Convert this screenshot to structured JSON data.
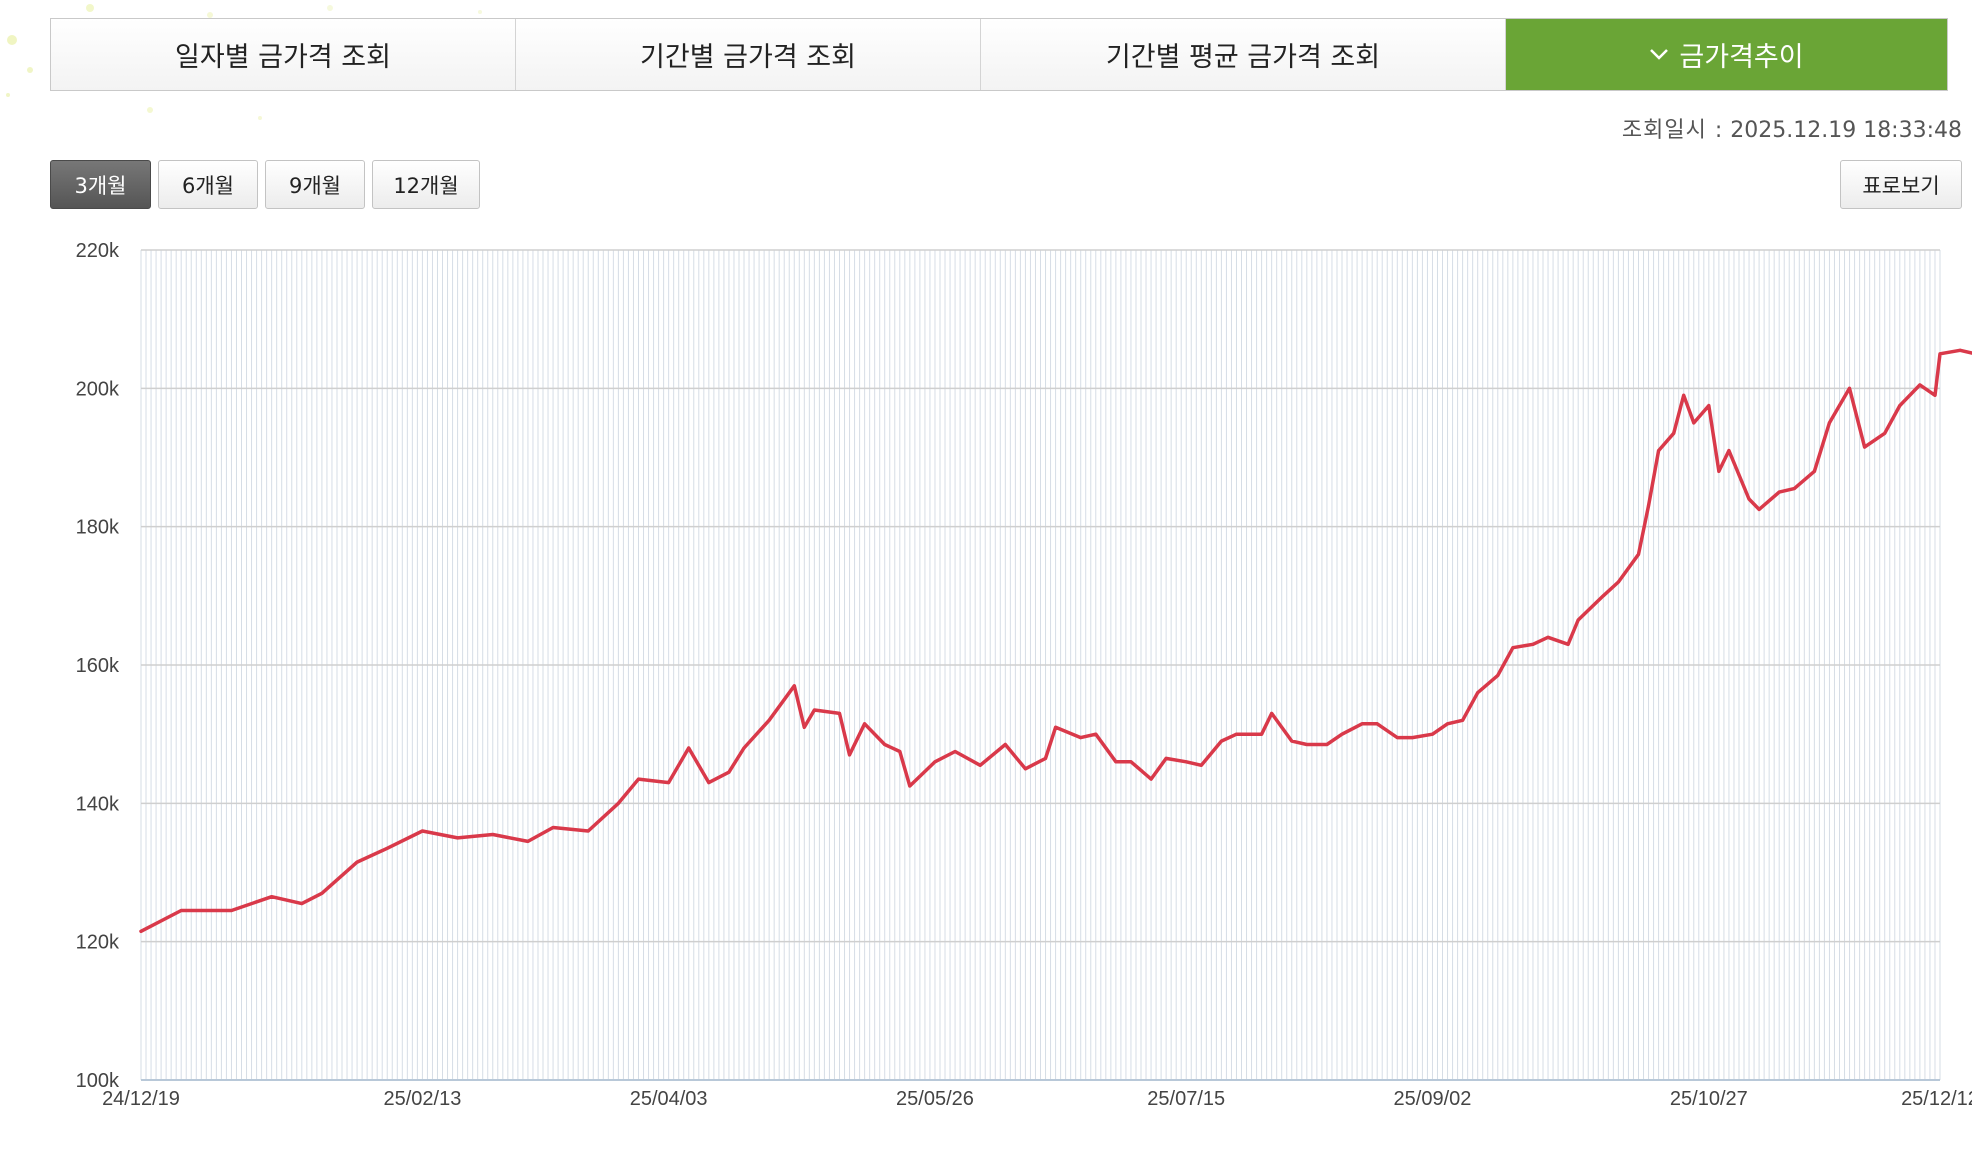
{
  "tabs": [
    {
      "label": "일자별 금가격 조회"
    },
    {
      "label": "기간별 금가격 조회"
    },
    {
      "label": "기간별 평균 금가격 조회"
    },
    {
      "label": "금가격추이",
      "icon": "chevron-down-icon"
    }
  ],
  "active_tab": 3,
  "timestamp": {
    "label": "조회일시 :",
    "value": "2025.12.19 18:33:48"
  },
  "period_buttons": [
    "3개월",
    "6개월",
    "9개월",
    "12개월"
  ],
  "active_period": 0,
  "table_view_label": "표로보기",
  "colors": {
    "accent": "#6aa536",
    "line": "#d9394a",
    "grid": "#d6dde6"
  },
  "chart_data": {
    "type": "line",
    "title": "",
    "xlabel": "",
    "ylabel": "",
    "y_ticks": [
      "100k",
      "120k",
      "140k",
      "160k",
      "180k",
      "200k",
      "220k"
    ],
    "ylim": [
      100000,
      220000
    ],
    "x_ticks": [
      "24/12/19",
      "25/02/13",
      "25/04/03",
      "25/05/26",
      "25/07/15",
      "25/09/02",
      "25/10/27",
      "25/12/12"
    ],
    "grid": true,
    "series": [
      {
        "name": "",
        "points": [
          [
            "24/12/19",
            121500
          ],
          [
            "24/12/27",
            124500
          ],
          [
            "25/01/06",
            124500
          ],
          [
            "25/01/14",
            126500
          ],
          [
            "25/01/20",
            125500
          ],
          [
            "25/01/24",
            127000
          ],
          [
            "25/01/31",
            131500
          ],
          [
            "25/02/06",
            133500
          ],
          [
            "25/02/13",
            136000
          ],
          [
            "25/02/20",
            135000
          ],
          [
            "25/02/27",
            135500
          ],
          [
            "25/03/06",
            134500
          ],
          [
            "25/03/11",
            136500
          ],
          [
            "25/03/18",
            136000
          ],
          [
            "25/03/24",
            140000
          ],
          [
            "25/03/28",
            143500
          ],
          [
            "25/04/03",
            143000
          ],
          [
            "25/04/07",
            148000
          ],
          [
            "25/04/11",
            143000
          ],
          [
            "25/04/15",
            144500
          ],
          [
            "25/04/18",
            148000
          ],
          [
            "25/04/23",
            152000
          ],
          [
            "25/04/28",
            157000
          ],
          [
            "25/04/30",
            151000
          ],
          [
            "25/05/02",
            153500
          ],
          [
            "25/05/07",
            153000
          ],
          [
            "25/05/09",
            147000
          ],
          [
            "25/05/12",
            151500
          ],
          [
            "25/05/16",
            148500
          ],
          [
            "25/05/19",
            147500
          ],
          [
            "25/05/21",
            142500
          ],
          [
            "25/05/26",
            146000
          ],
          [
            "25/05/30",
            147500
          ],
          [
            "25/06/04",
            145500
          ],
          [
            "25/06/09",
            148500
          ],
          [
            "25/06/13",
            145000
          ],
          [
            "25/06/17",
            146500
          ],
          [
            "25/06/19",
            151000
          ],
          [
            "25/06/24",
            149500
          ],
          [
            "25/06/27",
            150000
          ],
          [
            "25/07/01",
            146000
          ],
          [
            "25/07/04",
            146000
          ],
          [
            "25/07/08",
            143500
          ],
          [
            "25/07/11",
            146500
          ],
          [
            "25/07/15",
            146000
          ],
          [
            "25/07/18",
            145500
          ],
          [
            "25/07/22",
            149000
          ],
          [
            "25/07/25",
            150000
          ],
          [
            "25/07/30",
            150000
          ],
          [
            "25/08/01",
            153000
          ],
          [
            "25/08/05",
            149000
          ],
          [
            "25/08/08",
            148500
          ],
          [
            "25/08/12",
            148500
          ],
          [
            "25/08/15",
            150000
          ],
          [
            "25/08/19",
            151500
          ],
          [
            "25/08/22",
            151500
          ],
          [
            "25/08/26",
            149500
          ],
          [
            "25/08/29",
            149500
          ],
          [
            "25/09/02",
            150000
          ],
          [
            "25/09/05",
            151500
          ],
          [
            "25/09/08",
            152000
          ],
          [
            "25/09/11",
            156000
          ],
          [
            "25/09/15",
            158500
          ],
          [
            "25/09/18",
            162500
          ],
          [
            "25/09/22",
            163000
          ],
          [
            "25/09/25",
            164000
          ],
          [
            "25/09/29",
            163000
          ],
          [
            "25/10/01",
            166500
          ],
          [
            "25/10/06",
            170000
          ],
          [
            "25/10/09",
            172000
          ],
          [
            "25/10/13",
            176000
          ],
          [
            "25/10/15",
            183000
          ],
          [
            "25/10/17",
            191000
          ],
          [
            "25/10/20",
            193500
          ],
          [
            "25/10/22",
            199000
          ],
          [
            "25/10/24",
            195000
          ],
          [
            "25/10/27",
            197500
          ],
          [
            "25/10/29",
            188000
          ],
          [
            "25/10/31",
            191000
          ],
          [
            "25/11/04",
            184000
          ],
          [
            "25/11/06",
            182500
          ],
          [
            "25/11/10",
            185000
          ],
          [
            "25/11/13",
            185500
          ],
          [
            "25/11/17",
            188000
          ],
          [
            "25/11/20",
            195000
          ],
          [
            "25/11/24",
            200000
          ],
          [
            "25/11/27",
            191500
          ],
          [
            "25/12/01",
            193500
          ],
          [
            "25/12/04",
            197500
          ],
          [
            "25/12/08",
            200500
          ],
          [
            "25/12/11",
            199000
          ],
          [
            "25/12/12",
            205000
          ],
          [
            "25/12/16",
            205500
          ],
          [
            "25/12/19",
            205000
          ]
        ]
      }
    ]
  }
}
